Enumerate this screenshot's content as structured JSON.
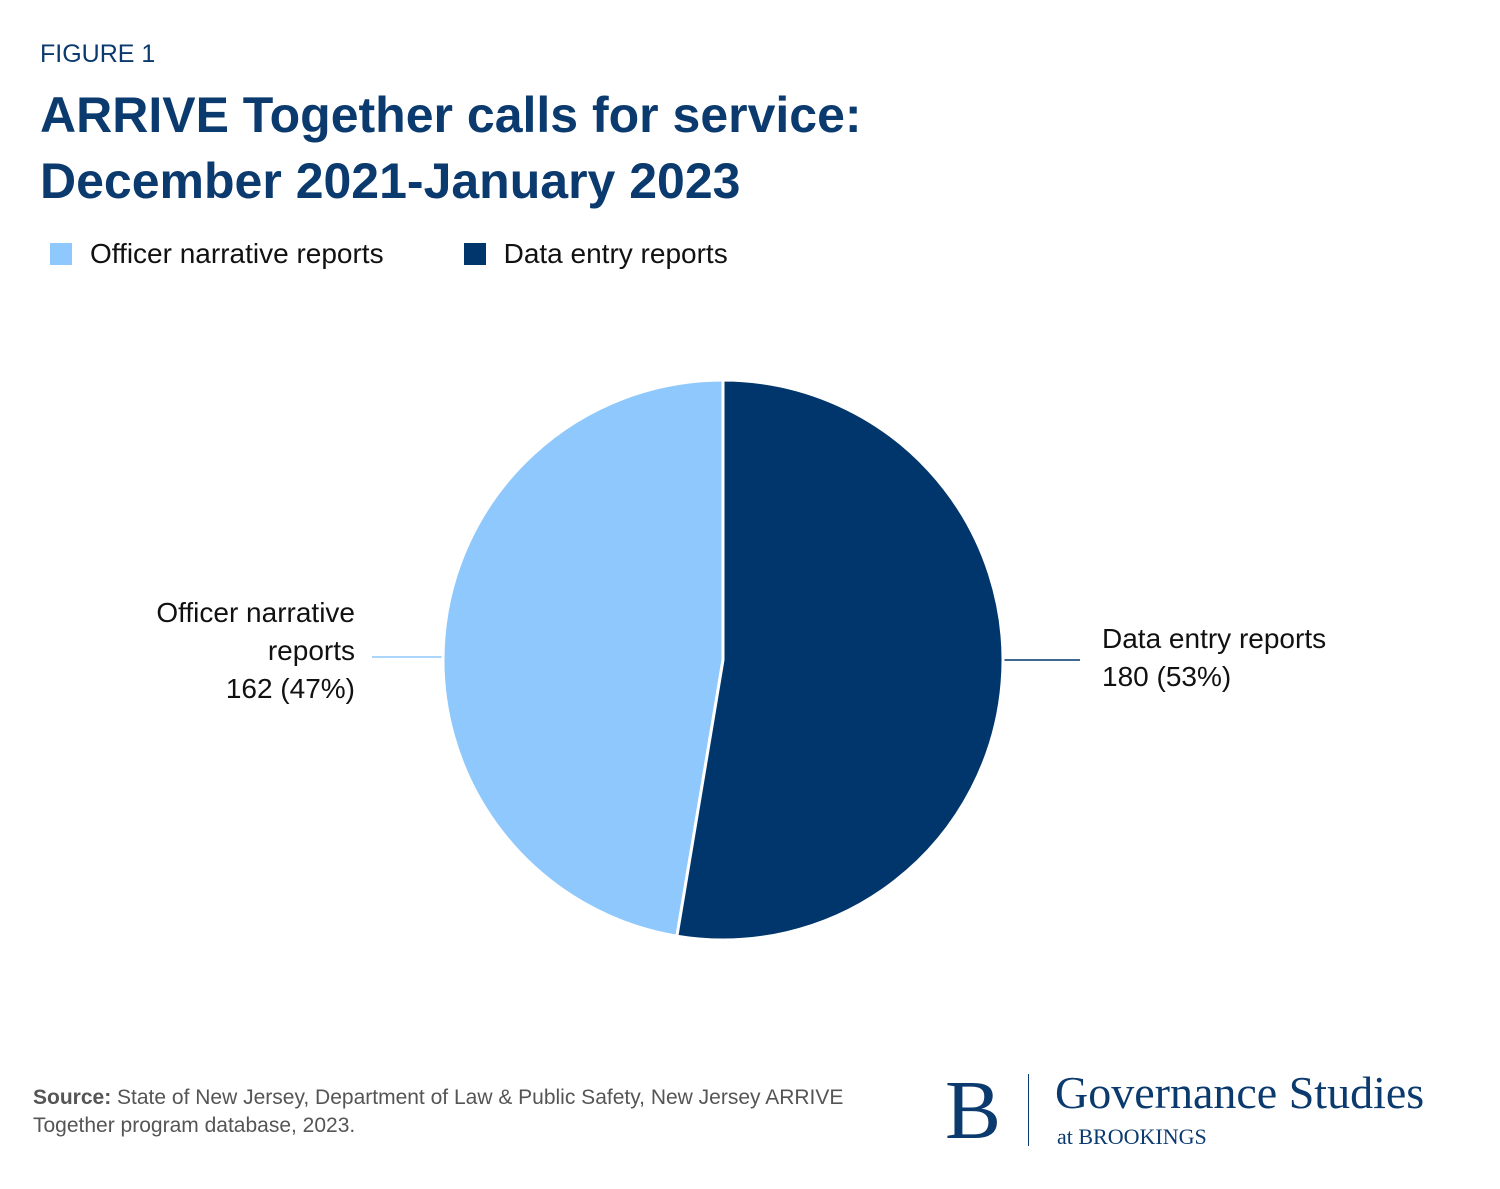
{
  "figure_label": "FIGURE 1",
  "chart_data": {
    "type": "pie",
    "title": "ARRIVE Together calls for service: December 2021-January 2023",
    "categories": [
      "Officer narrative reports",
      "Data entry reports"
    ],
    "values": [
      162,
      180
    ],
    "value_labels": [
      "162 (47%)",
      "180 (53%)"
    ],
    "colors": [
      "#8ec8fc",
      "#00366b"
    ],
    "legend": "top"
  },
  "source": {
    "label": "Source:",
    "text": "State of New Jersey, Department of Law & Public Safety, New Jersey ARRIVE Together program database, 2023."
  },
  "branding": {
    "mark": "B",
    "name": "Governance Studies",
    "sub": "at BROOKINGS"
  }
}
